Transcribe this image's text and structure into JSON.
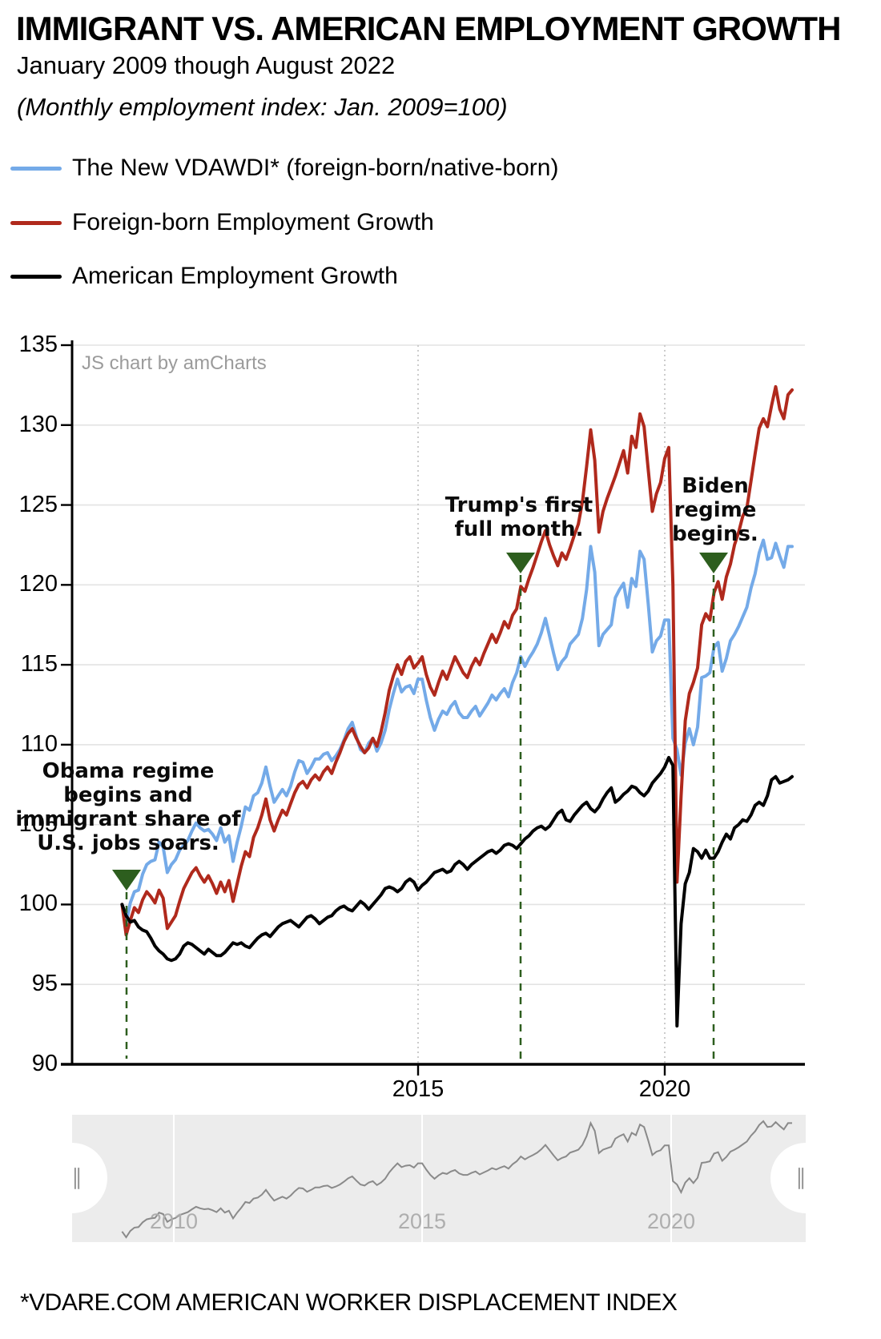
{
  "header": {
    "title": "IMMIGRANT VS. AMERICAN EMPLOYMENT GROWTH",
    "subtitle": "January 2009 though August 2022",
    "note": "(Monthly employment index: Jan. 2009=100)"
  },
  "watermark": "JS chart by amCharts",
  "legend": [
    {
      "label": "The New VDAWDI* (foreign-born/native-born)",
      "color": "#74aae8"
    },
    {
      "label": "Foreign-born Employment Growth",
      "color": "#b0291c"
    },
    {
      "label": "American Employment Growth",
      "color": "#000000"
    }
  ],
  "axes": {
    "y_ticks": [
      90,
      95,
      100,
      105,
      110,
      115,
      120,
      125,
      130,
      135
    ],
    "x_ticks": [
      "2015",
      "2020"
    ]
  },
  "annotations": [
    {
      "lines": [
        "Obama regime",
        "begins and",
        "immigrant share of",
        "U.S. jobs soars."
      ]
    },
    {
      "lines": [
        "Trump's first",
        "full month."
      ]
    },
    {
      "lines": [
        "Biden",
        "regime",
        "begins."
      ]
    }
  ],
  "navigator": {
    "labels": [
      "2010",
      "2015",
      "2020"
    ],
    "grip_glyph": "∥"
  },
  "footer": "*VDARE.COM AMERICAN WORKER DISPLACEMENT INDEX",
  "colors": {
    "vdawdi": "#74aae8",
    "foreign": "#b0291c",
    "american": "#000000",
    "marker_green": "#2d5e1e",
    "gridline": "#e3e3e3",
    "dotted_grid": "#cccccc",
    "nav_bg": "#ececec",
    "nav_line": "#8a8a8a"
  },
  "chart_data": {
    "type": "line",
    "title": "IMMIGRANT VS. AMERICAN EMPLOYMENT GROWTH",
    "x_start": "2009-01",
    "x_end": "2022-08",
    "frequency": "monthly",
    "n_points": 164,
    "ylim": [
      90,
      135
    ],
    "y_ticks": [
      90,
      95,
      100,
      105,
      110,
      115,
      120,
      125,
      130,
      135
    ],
    "x_axis_labels": [
      "2015",
      "2020"
    ],
    "grid": true,
    "legend_position": "top-left",
    "series": [
      {
        "name": "The New VDAWDI* (foreign-born/native-born)",
        "color": "#74aae8",
        "values": [
          100.0,
          98.8,
          100.1,
          100.8,
          100.9,
          101.9,
          102.5,
          102.7,
          102.8,
          103.9,
          103.6,
          102.0,
          102.5,
          102.8,
          103.4,
          103.7,
          104.0,
          104.6,
          105.1,
          104.8,
          104.6,
          104.7,
          104.4,
          104.0,
          104.8,
          103.9,
          104.3,
          102.7,
          103.9,
          104.9,
          106.1,
          105.9,
          106.8,
          107.0,
          107.6,
          108.6,
          107.4,
          106.4,
          106.8,
          107.2,
          106.8,
          107.4,
          108.3,
          109.0,
          108.9,
          108.2,
          108.6,
          109.1,
          109.1,
          109.4,
          109.5,
          109.0,
          109.3,
          109.7,
          110.3,
          111.0,
          111.4,
          110.5,
          109.7,
          109.5,
          110.1,
          110.4,
          109.6,
          110.1,
          110.9,
          112.2,
          113.2,
          114.1,
          113.3,
          113.6,
          113.7,
          113.2,
          114.1,
          114.1,
          112.8,
          111.7,
          110.9,
          111.6,
          112.1,
          111.9,
          112.4,
          112.7,
          112.0,
          111.7,
          111.7,
          112.1,
          112.4,
          111.8,
          112.2,
          112.6,
          113.1,
          112.8,
          113.2,
          113.5,
          113.0,
          113.9,
          114.5,
          115.5,
          114.9,
          115.4,
          115.8,
          116.3,
          117.0,
          117.9,
          116.8,
          115.7,
          114.7,
          115.2,
          115.5,
          116.3,
          116.6,
          116.9,
          117.9,
          119.7,
          122.4,
          120.8,
          116.2,
          116.9,
          117.2,
          117.5,
          119.2,
          119.7,
          120.1,
          118.6,
          120.4,
          119.9,
          122.1,
          121.6,
          118.8,
          115.8,
          116.5,
          116.8,
          117.8,
          117.8,
          110.4,
          109.7,
          108.1,
          110.1,
          111.0,
          110.0,
          111.1,
          114.2,
          114.3,
          114.5,
          116.1,
          116.4,
          114.6,
          115.4,
          116.5,
          116.9,
          117.4,
          118.0,
          118.6,
          119.8,
          120.7,
          122.0,
          122.8,
          121.6,
          121.7,
          122.6,
          121.8,
          121.1,
          122.4,
          122.4
        ]
      },
      {
        "name": "Foreign-born Employment Growth",
        "color": "#b0291c",
        "values": [
          100.0,
          98.1,
          99.0,
          99.8,
          99.5,
          100.3,
          100.8,
          100.5,
          100.1,
          100.9,
          100.4,
          98.5,
          98.9,
          99.3,
          100.2,
          101.0,
          101.5,
          102.0,
          102.3,
          101.8,
          101.4,
          101.8,
          101.3,
          100.7,
          101.4,
          100.8,
          101.5,
          100.2,
          101.3,
          102.4,
          103.3,
          103.0,
          104.2,
          104.8,
          105.6,
          106.6,
          105.3,
          104.6,
          105.3,
          105.9,
          105.6,
          106.3,
          107.0,
          107.5,
          107.7,
          107.3,
          107.8,
          108.1,
          107.8,
          108.3,
          108.6,
          108.2,
          108.9,
          109.5,
          110.2,
          110.7,
          111.0,
          110.4,
          109.9,
          109.5,
          109.8,
          110.4,
          109.9,
          110.8,
          112.0,
          113.4,
          114.3,
          115.0,
          114.4,
          115.2,
          115.5,
          114.8,
          115.1,
          115.5,
          114.4,
          113.6,
          113.1,
          113.9,
          114.6,
          114.1,
          114.8,
          115.5,
          115.0,
          114.5,
          114.2,
          114.9,
          115.4,
          115.0,
          115.7,
          116.3,
          116.9,
          116.4,
          117.0,
          117.7,
          117.3,
          118.1,
          118.5,
          119.9,
          119.6,
          120.4,
          121.1,
          121.9,
          122.7,
          123.4,
          122.5,
          121.8,
          121.2,
          122.0,
          121.6,
          122.3,
          123.1,
          123.8,
          125.2,
          127.4,
          129.7,
          127.8,
          123.3,
          124.6,
          125.4,
          126.1,
          126.8,
          127.6,
          128.4,
          127.0,
          129.3,
          128.6,
          130.7,
          129.9,
          127.2,
          124.6,
          125.7,
          126.4,
          127.9,
          128.6,
          120.0,
          101.4,
          106.8,
          111.5,
          113.2,
          113.9,
          114.8,
          117.5,
          118.2,
          117.8,
          119.5,
          120.2,
          119.1,
          120.5,
          121.3,
          122.5,
          123.3,
          124.3,
          124.8,
          126.5,
          128.2,
          129.8,
          130.4,
          129.9,
          131.2,
          132.4,
          131.0,
          130.4,
          131.9,
          132.2
        ]
      },
      {
        "name": "American Employment Growth",
        "color": "#000000",
        "values": [
          100.0,
          99.3,
          98.9,
          99.0,
          98.6,
          98.4,
          98.3,
          97.9,
          97.4,
          97.1,
          96.9,
          96.6,
          96.5,
          96.6,
          96.9,
          97.4,
          97.6,
          97.5,
          97.3,
          97.1,
          96.9,
          97.2,
          97.0,
          96.8,
          96.8,
          97.0,
          97.3,
          97.6,
          97.5,
          97.6,
          97.4,
          97.3,
          97.6,
          97.9,
          98.1,
          98.2,
          98.0,
          98.3,
          98.6,
          98.8,
          98.9,
          99.0,
          98.8,
          98.6,
          98.9,
          99.2,
          99.3,
          99.1,
          98.8,
          99.0,
          99.2,
          99.3,
          99.6,
          99.8,
          99.9,
          99.7,
          99.6,
          99.9,
          100.2,
          100.0,
          99.7,
          100.0,
          100.3,
          100.6,
          101.0,
          101.1,
          101.0,
          100.8,
          101.0,
          101.4,
          101.6,
          101.4,
          100.9,
          101.2,
          101.4,
          101.7,
          102.0,
          102.1,
          102.2,
          102.0,
          102.1,
          102.5,
          102.7,
          102.5,
          102.2,
          102.5,
          102.7,
          102.9,
          103.1,
          103.3,
          103.4,
          103.2,
          103.4,
          103.7,
          103.8,
          103.7,
          103.5,
          103.8,
          104.1,
          104.3,
          104.6,
          104.8,
          104.9,
          104.7,
          104.9,
          105.3,
          105.7,
          105.9,
          105.3,
          105.2,
          105.6,
          105.9,
          106.2,
          106.4,
          106.0,
          105.8,
          106.1,
          106.6,
          107.0,
          107.3,
          106.4,
          106.6,
          106.9,
          107.1,
          107.4,
          107.3,
          107.0,
          106.8,
          107.1,
          107.6,
          107.9,
          108.2,
          108.6,
          109.2,
          108.7,
          92.4,
          98.8,
          101.3,
          102.0,
          103.5,
          103.3,
          102.9,
          103.4,
          102.9,
          102.9,
          103.3,
          103.9,
          104.4,
          104.1,
          104.8,
          105.0,
          105.3,
          105.2,
          105.6,
          106.2,
          106.4,
          106.2,
          106.8,
          107.8,
          108.0,
          107.6,
          107.7,
          107.8,
          108.0
        ]
      }
    ],
    "annotations": [
      {
        "text": "Obama regime begins and immigrant share of U.S. jobs soars.",
        "marker": "green-triangle-down"
      },
      {
        "text": "Trump's first full month.",
        "marker": "green-triangle-down"
      },
      {
        "text": "Biden regime begins.",
        "marker": "green-triangle-down"
      }
    ]
  }
}
